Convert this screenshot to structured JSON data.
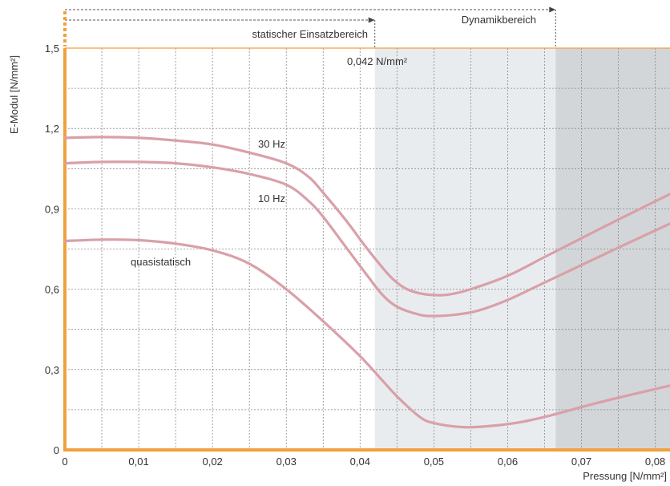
{
  "chart_data": {
    "type": "line",
    "xlabel": "Pressung [N/mm²]",
    "ylabel": "E-Modul [N/mm²]",
    "xlim": [
      0,
      0.082
    ],
    "ylim": [
      0,
      1.5
    ],
    "xticks": [
      0,
      0.01,
      0.02,
      0.03,
      0.04,
      0.05,
      0.06,
      0.07,
      0.08
    ],
    "xtick_labels": [
      "0",
      "0,01",
      "0,02",
      "0,03",
      "0,04",
      "0,05",
      "0,06",
      "0,07",
      "0,08"
    ],
    "yticks": [
      0,
      0.3,
      0.6,
      0.9,
      1.2,
      1.5
    ],
    "ytick_labels": [
      "0",
      "0,3",
      "0,6",
      "0,9",
      "1,2",
      "1,5"
    ],
    "grid": true,
    "regions": [
      {
        "label": "statischer Einsatzbereich",
        "from": 0,
        "to": 0.042,
        "fill": "none"
      },
      {
        "label": "Dynamikbereich",
        "from": 0,
        "to": 0.0665,
        "fill": "#e9ecef"
      }
    ],
    "shaded_bands": [
      {
        "from": 0.042,
        "to": 0.0665,
        "color": "#e9ecef"
      },
      {
        "from": 0.0665,
        "to": 0.082,
        "color": "#d3d6d9"
      }
    ],
    "annotations": [
      {
        "text": "0,042 N/mm²",
        "x": 0.042
      }
    ],
    "series": [
      {
        "name": "30 Hz",
        "color": "#d9a0a8",
        "x": [
          0,
          0.005,
          0.01,
          0.015,
          0.02,
          0.025,
          0.03,
          0.033,
          0.035,
          0.038,
          0.041,
          0.044,
          0.046,
          0.048,
          0.05,
          0.052,
          0.055,
          0.06,
          0.065,
          0.07,
          0.075,
          0.082
        ],
        "y": [
          1.165,
          1.168,
          1.165,
          1.155,
          1.14,
          1.11,
          1.07,
          1.02,
          0.96,
          0.86,
          0.75,
          0.65,
          0.605,
          0.585,
          0.578,
          0.58,
          0.6,
          0.65,
          0.72,
          0.79,
          0.86,
          0.955
        ]
      },
      {
        "name": "10 Hz",
        "color": "#d9a0a8",
        "x": [
          0,
          0.005,
          0.01,
          0.015,
          0.02,
          0.025,
          0.03,
          0.033,
          0.035,
          0.038,
          0.041,
          0.043,
          0.045,
          0.048,
          0.05,
          0.053,
          0.056,
          0.06,
          0.065,
          0.07,
          0.075,
          0.082
        ],
        "y": [
          1.07,
          1.075,
          1.075,
          1.07,
          1.055,
          1.03,
          0.99,
          0.93,
          0.87,
          0.76,
          0.65,
          0.58,
          0.535,
          0.505,
          0.5,
          0.505,
          0.52,
          0.56,
          0.625,
          0.69,
          0.755,
          0.845
        ]
      },
      {
        "name": "quasistatisch",
        "color": "#d9a0a8",
        "x": [
          0,
          0.005,
          0.01,
          0.015,
          0.02,
          0.025,
          0.03,
          0.035,
          0.04,
          0.043,
          0.045,
          0.048,
          0.05,
          0.054,
          0.058,
          0.062,
          0.066,
          0.07,
          0.075,
          0.082
        ],
        "y": [
          0.78,
          0.785,
          0.783,
          0.77,
          0.745,
          0.695,
          0.6,
          0.48,
          0.35,
          0.26,
          0.2,
          0.125,
          0.1,
          0.085,
          0.09,
          0.105,
          0.13,
          0.16,
          0.195,
          0.24
        ]
      }
    ]
  }
}
